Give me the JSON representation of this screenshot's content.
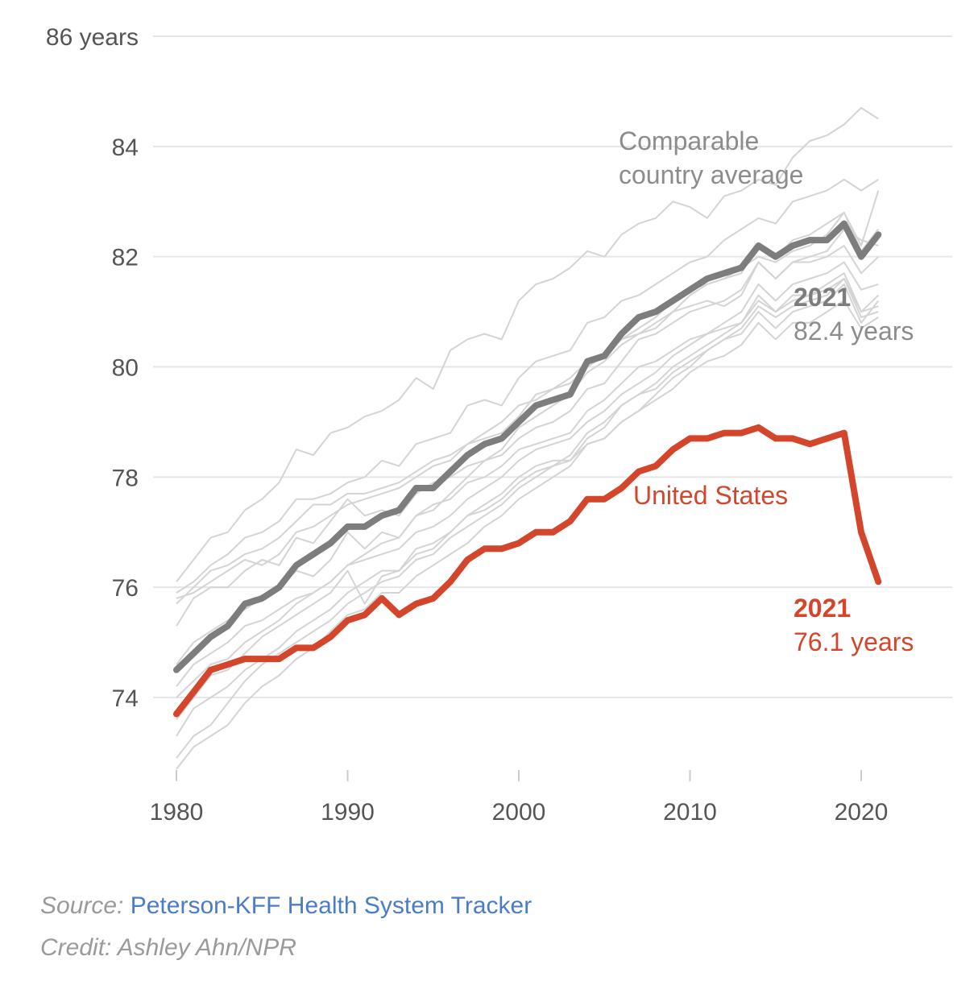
{
  "chart_data": {
    "type": "line",
    "y_unit_label": "86 years",
    "y_ticks": [
      74,
      76,
      78,
      80,
      82,
      84,
      86
    ],
    "y_tick_labels": [
      "74",
      "76",
      "78",
      "80",
      "82",
      "84",
      "86 years"
    ],
    "x_ticks": [
      1980,
      1990,
      2000,
      2010,
      2020
    ],
    "x_tick_labels": [
      "1980",
      "1990",
      "2000",
      "2010",
      "2020"
    ],
    "xlim": [
      1980,
      2025
    ],
    "ylim": [
      72.6,
      86
    ],
    "grid": true,
    "x": [
      1980,
      1981,
      1982,
      1983,
      1984,
      1985,
      1986,
      1987,
      1988,
      1989,
      1990,
      1991,
      1992,
      1993,
      1994,
      1995,
      1996,
      1997,
      1998,
      1999,
      2000,
      2001,
      2002,
      2003,
      2004,
      2005,
      2006,
      2007,
      2008,
      2009,
      2010,
      2011,
      2012,
      2013,
      2014,
      2015,
      2016,
      2017,
      2018,
      2019,
      2020,
      2021
    ],
    "series": [
      {
        "name": "United States",
        "color": "#d4462b",
        "values": [
          73.7,
          74.1,
          74.5,
          74.6,
          74.7,
          74.7,
          74.7,
          74.9,
          74.9,
          75.1,
          75.4,
          75.5,
          75.8,
          75.5,
          75.7,
          75.8,
          76.1,
          76.5,
          76.7,
          76.7,
          76.8,
          77.0,
          77.0,
          77.2,
          77.6,
          77.6,
          77.8,
          78.1,
          78.2,
          78.5,
          78.7,
          78.7,
          78.8,
          78.8,
          78.9,
          78.7,
          78.7,
          78.6,
          78.7,
          78.8,
          77.0,
          76.1
        ]
      },
      {
        "name": "Comparable country average",
        "color": "#7d7d7d",
        "values": [
          74.5,
          74.8,
          75.1,
          75.3,
          75.7,
          75.8,
          76.0,
          76.4,
          76.6,
          76.8,
          77.1,
          77.1,
          77.3,
          77.4,
          77.8,
          77.8,
          78.1,
          78.4,
          78.6,
          78.7,
          79.0,
          79.3,
          79.4,
          79.5,
          80.1,
          80.2,
          80.6,
          80.9,
          81.0,
          81.2,
          81.4,
          81.6,
          81.7,
          81.8,
          82.2,
          82.0,
          82.2,
          82.3,
          82.3,
          82.6,
          82.0,
          82.4
        ]
      }
    ],
    "background_series_color": "#d4d4d4",
    "background_series": [
      {
        "values": [
          76.1,
          76.5,
          76.9,
          77.0,
          77.4,
          77.6,
          77.9,
          78.5,
          78.4,
          78.8,
          78.9,
          79.1,
          79.2,
          79.4,
          79.8,
          79.6,
          80.3,
          80.5,
          80.6,
          80.5,
          81.2,
          81.5,
          81.6,
          81.8,
          82.1,
          82.0,
          82.4,
          82.6,
          82.7,
          83.0,
          82.9,
          82.7,
          83.1,
          83.2,
          83.4,
          83.3,
          83.8,
          84.1,
          84.2,
          84.4,
          84.7,
          84.5
        ]
      },
      {
        "values": [
          75.9,
          76.1,
          76.4,
          76.6,
          76.9,
          77.0,
          77.2,
          77.6,
          77.6,
          77.7,
          77.9,
          78.0,
          78.3,
          78.2,
          78.6,
          78.7,
          78.8,
          79.3,
          79.4,
          79.3,
          79.8,
          80.1,
          80.2,
          80.3,
          80.8,
          80.9,
          81.2,
          81.3,
          81.5,
          81.7,
          81.9,
          82.0,
          82.3,
          82.5,
          82.7,
          82.6,
          83.0,
          83.1,
          83.2,
          83.4,
          83.2,
          83.4
        ]
      },
      {
        "values": [
          75.7,
          76.0,
          76.3,
          76.4,
          76.6,
          76.7,
          76.9,
          77.2,
          77.5,
          77.5,
          77.7,
          77.7,
          77.8,
          77.9,
          78.1,
          78.3,
          78.4,
          78.6,
          78.7,
          78.8,
          79.1,
          79.5,
          79.6,
          79.7,
          80.0,
          80.2,
          80.5,
          80.6,
          80.8,
          81.0,
          81.3,
          81.5,
          81.6,
          81.7,
          82.2,
          82.0,
          82.3,
          82.4,
          82.6,
          82.8,
          82.2,
          83.2
        ]
      },
      {
        "values": [
          75.8,
          75.9,
          76.1,
          76.3,
          76.5,
          76.4,
          76.6,
          77.0,
          77.1,
          77.3,
          77.5,
          77.6,
          77.7,
          77.8,
          78.0,
          78.2,
          78.3,
          78.6,
          78.8,
          79.0,
          79.3,
          79.4,
          79.6,
          79.8,
          80.1,
          80.2,
          80.5,
          80.7,
          80.9,
          81.2,
          81.4,
          81.5,
          81.6,
          81.8,
          82.0,
          81.9,
          82.1,
          82.2,
          82.4,
          82.8,
          82.1,
          82.5
        ]
      },
      {
        "values": [
          75.3,
          75.8,
          76.0,
          76.0,
          76.3,
          76.5,
          76.4,
          76.9,
          76.8,
          77.2,
          77.6,
          77.3,
          77.4,
          77.3,
          77.7,
          77.9,
          78.0,
          78.2,
          78.3,
          78.4,
          78.7,
          78.9,
          79.0,
          79.2,
          79.6,
          79.7,
          80.1,
          80.5,
          80.6,
          80.8,
          81.0,
          81.1,
          81.2,
          81.4,
          81.9,
          81.6,
          81.9,
          81.9,
          82.0,
          82.2,
          81.7,
          82.0
        ]
      },
      {
        "values": [
          74.6,
          75.0,
          75.2,
          75.4,
          75.6,
          75.8,
          76.0,
          76.3,
          76.2,
          76.5,
          77.0,
          76.7,
          77.0,
          76.9,
          77.3,
          77.5,
          77.6,
          77.9,
          78.0,
          78.2,
          78.5,
          78.6,
          78.7,
          78.8,
          79.2,
          79.4,
          79.7,
          80.0,
          80.1,
          80.3,
          80.5,
          80.6,
          80.8,
          81.0,
          81.5,
          81.2,
          81.5,
          81.6,
          81.7,
          81.9,
          81.4,
          81.5
        ]
      },
      {
        "values": [
          74.2,
          74.6,
          74.8,
          75.0,
          75.3,
          75.4,
          75.6,
          75.8,
          75.9,
          76.1,
          76.4,
          76.5,
          76.6,
          76.7,
          77.0,
          77.1,
          77.3,
          77.6,
          77.8,
          78.0,
          78.3,
          78.5,
          78.6,
          78.7,
          79.0,
          79.2,
          79.5,
          79.7,
          79.9,
          80.2,
          80.4,
          80.6,
          80.7,
          80.8,
          81.3,
          81.0,
          81.3,
          81.3,
          81.5,
          81.7,
          81.0,
          81.3
        ]
      },
      {
        "values": [
          73.6,
          74.0,
          74.4,
          74.5,
          74.8,
          75.1,
          75.3,
          75.5,
          75.7,
          75.9,
          76.3,
          75.7,
          76.2,
          76.3,
          76.7,
          76.8,
          77.0,
          77.3,
          77.5,
          77.7,
          78.0,
          78.2,
          78.3,
          78.3,
          78.7,
          78.9,
          79.3,
          79.5,
          79.7,
          80.0,
          80.2,
          80.4,
          80.6,
          80.8,
          81.2,
          81.0,
          81.2,
          81.3,
          81.4,
          81.6,
          81.0,
          81.1
        ]
      },
      {
        "values": [
          73.3,
          73.8,
          74.0,
          74.2,
          74.5,
          74.7,
          74.9,
          75.2,
          75.4,
          75.6,
          75.9,
          76.1,
          76.3,
          76.3,
          76.6,
          76.7,
          77.0,
          77.3,
          77.4,
          77.6,
          77.9,
          78.1,
          78.2,
          78.4,
          78.8,
          79.0,
          79.3,
          79.5,
          79.6,
          79.9,
          80.1,
          80.3,
          80.5,
          80.7,
          81.1,
          80.9,
          81.1,
          81.2,
          81.3,
          81.6,
          80.9,
          81.0
        ]
      },
      {
        "values": [
          72.9,
          73.3,
          73.5,
          73.9,
          74.3,
          74.6,
          74.8,
          75.0,
          75.2,
          75.4,
          75.7,
          75.9,
          76.1,
          76.2,
          76.5,
          76.6,
          76.9,
          77.1,
          77.3,
          77.5,
          77.8,
          78.0,
          78.2,
          78.3,
          78.6,
          78.7,
          79.0,
          79.2,
          79.4,
          79.6,
          79.9,
          80.1,
          80.2,
          80.4,
          80.8,
          80.5,
          80.8,
          80.8,
          81.0,
          81.2,
          80.7,
          80.9
        ]
      },
      {
        "values": [
          72.7,
          73.1,
          73.3,
          73.5,
          73.9,
          74.2,
          74.4,
          74.7,
          74.9,
          75.2,
          75.5,
          75.6,
          75.9,
          75.9,
          76.2,
          76.4,
          76.6,
          76.8,
          77.1,
          77.3,
          77.6,
          77.8,
          78.0,
          78.2,
          78.6,
          78.7,
          79.0,
          79.2,
          79.5,
          79.8,
          80.0,
          80.3,
          80.5,
          80.6,
          81.0,
          80.7,
          81.0,
          81.1,
          81.2,
          81.5,
          80.8,
          81.2
        ]
      },
      {
        "values": [
          74.0,
          74.3,
          74.6,
          74.7,
          75.0,
          75.2,
          75.4,
          75.7,
          75.9,
          76.1,
          76.4,
          76.6,
          76.8,
          76.9,
          77.3,
          77.4,
          77.7,
          78.0,
          78.3,
          78.5,
          78.9,
          79.1,
          79.3,
          79.5,
          79.9,
          80.1,
          80.4,
          80.6,
          80.7,
          81.0,
          81.1,
          81.2,
          81.1,
          81.3,
          81.9,
          81.6,
          81.9,
          82.0,
          82.1,
          82.5,
          82.3,
          82.2
        ]
      }
    ],
    "annotations": {
      "comparable_label_line1": "Comparable",
      "comparable_label_line2": "country average",
      "comparable_end_year": "2021",
      "comparable_end_value": "82.4 years",
      "us_label": "United States",
      "us_end_year": "2021",
      "us_end_value": "76.1 years"
    }
  },
  "footer": {
    "source_prefix": "Source:",
    "source_link": "Peterson-KFF Health System Tracker",
    "credit": "Credit: Ashley Ahn/NPR"
  }
}
